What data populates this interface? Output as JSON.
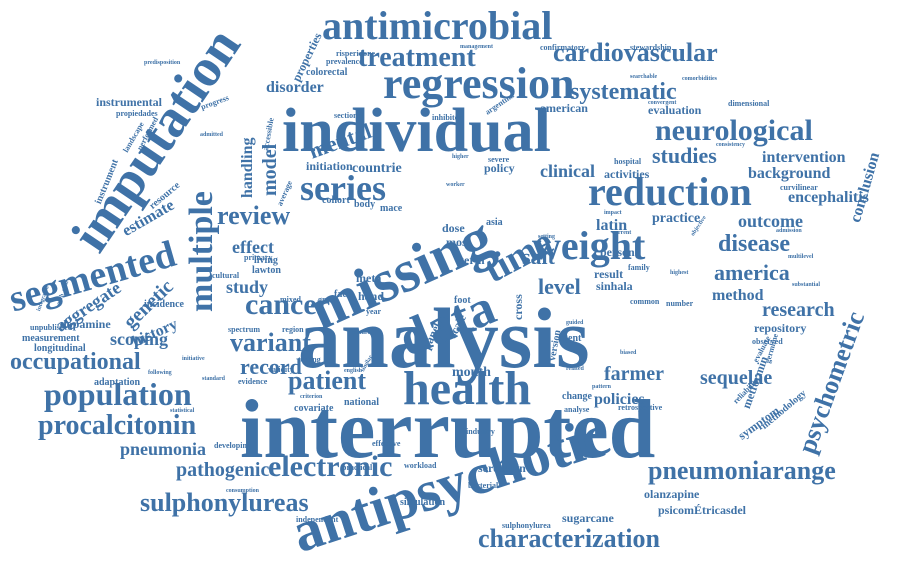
{
  "colors": {
    "primary": "#3f72a7",
    "background": "#ffffff"
  },
  "words": [
    {
      "text": "analysis",
      "size": 86
    },
    {
      "text": "interrupted",
      "size": 84
    },
    {
      "text": "individual",
      "size": 62
    },
    {
      "text": "missing",
      "size": 60
    },
    {
      "text": "antipsychotic",
      "size": 58
    },
    {
      "text": "imputation",
      "size": 54
    },
    {
      "text": "data",
      "size": 52
    },
    {
      "text": "health",
      "size": 48
    },
    {
      "text": "regression",
      "size": 44
    },
    {
      "text": "antimicrobial",
      "size": 40
    },
    {
      "text": "weight",
      "size": 40
    },
    {
      "text": "reduction",
      "size": 40
    },
    {
      "text": "segmented",
      "size": 38
    },
    {
      "text": "series",
      "size": 36
    },
    {
      "text": "time",
      "size": 38
    },
    {
      "text": "multiple",
      "size": 34
    },
    {
      "text": "population",
      "size": 32
    },
    {
      "text": "cancer",
      "size": 30
    },
    {
      "text": "electronic",
      "size": 30
    },
    {
      "text": "neurological",
      "size": 30
    },
    {
      "text": "procalcitonin",
      "size": 28
    },
    {
      "text": "treatment",
      "size": 28
    },
    {
      "text": "pneumoniarange",
      "size": 26
    },
    {
      "text": "sulphonylureas",
      "size": 26
    },
    {
      "text": "characterization",
      "size": 26
    },
    {
      "text": "review",
      "size": 26
    },
    {
      "text": "cardiovascular",
      "size": 26
    },
    {
      "text": "patient",
      "size": 26
    },
    {
      "text": "variant",
      "size": 26
    },
    {
      "text": "psychometric",
      "size": 26
    },
    {
      "text": "systematic",
      "size": 24
    },
    {
      "text": "disease",
      "size": 24
    },
    {
      "text": "studies",
      "size": 22
    },
    {
      "text": "occupational",
      "size": 24
    },
    {
      "text": "record",
      "size": 22
    },
    {
      "text": "level",
      "size": 22
    },
    {
      "text": "salt",
      "size": 22
    },
    {
      "text": "america",
      "size": 22
    },
    {
      "text": "farmer",
      "size": 20
    },
    {
      "text": "sequelae",
      "size": 20
    },
    {
      "text": "research",
      "size": 20
    },
    {
      "text": "mental",
      "size": 22
    },
    {
      "text": "model",
      "size": 20
    },
    {
      "text": "genetic",
      "size": 20
    },
    {
      "text": "pathogenic",
      "size": 20
    },
    {
      "text": "pneumonia",
      "size": 18
    },
    {
      "text": "outcome",
      "size": 18
    },
    {
      "text": "clinical",
      "size": 18
    },
    {
      "text": "effect",
      "size": 18
    },
    {
      "text": "aggregate",
      "size": 18
    },
    {
      "text": "scoping",
      "size": 18
    },
    {
      "text": "study",
      "size": 18
    },
    {
      "text": "method",
      "size": 16
    },
    {
      "text": "conclusion",
      "size": 16
    },
    {
      "text": "policies",
      "size": 16
    },
    {
      "text": "disorder",
      "size": 16
    },
    {
      "text": "intervention",
      "size": 16
    },
    {
      "text": "background",
      "size": 16
    },
    {
      "text": "encephalitis",
      "size": 16
    },
    {
      "text": "latin",
      "size": 16
    },
    {
      "text": "handling",
      "size": 16
    },
    {
      "text": "estimate",
      "size": 16
    },
    {
      "text": "history",
      "size": 16
    },
    {
      "text": "countrie",
      "size": 14
    },
    {
      "text": "initiation",
      "size": 12
    },
    {
      "text": "policy",
      "size": 12
    },
    {
      "text": "american",
      "size": 12
    },
    {
      "text": "evaluation",
      "size": 12
    },
    {
      "text": "instrumental",
      "size": 12
    },
    {
      "text": "practice",
      "size": 14
    },
    {
      "text": "person",
      "size": 12
    },
    {
      "text": "result",
      "size": 12
    },
    {
      "text": "metformin",
      "size": 12
    },
    {
      "text": "symptom",
      "size": 12
    },
    {
      "text": "methodology",
      "size": 10
    },
    {
      "text": "repository",
      "size": 12
    },
    {
      "text": "olanzapine",
      "size": 12
    },
    {
      "text": "psicomÉtricasdel",
      "size": 12
    },
    {
      "text": "sugarcane",
      "size": 12
    },
    {
      "text": "serotonin",
      "size": 12
    },
    {
      "text": "mouth",
      "size": 14
    },
    {
      "text": "panel",
      "size": 12
    },
    {
      "text": "cross",
      "size": 12
    },
    {
      "text": "scale",
      "size": 12
    },
    {
      "text": "dose",
      "size": 12
    },
    {
      "text": "most",
      "size": 12
    },
    {
      "text": "meta",
      "size": 12
    },
    {
      "text": "face",
      "size": 10
    },
    {
      "text": "hand",
      "size": 12
    },
    {
      "text": "living",
      "size": 10
    },
    {
      "text": "lawton",
      "size": 10
    },
    {
      "text": "dopamine",
      "size": 12
    },
    {
      "text": "measurement",
      "size": 10
    },
    {
      "text": "longitudinal",
      "size": 10
    },
    {
      "text": "adaptation",
      "size": 10
    },
    {
      "text": "incidence",
      "size": 10
    },
    {
      "text": "properties",
      "size": 12
    },
    {
      "text": "colorectal",
      "size": 10
    },
    {
      "text": "prevalence",
      "size": 8
    },
    {
      "text": "risperidone",
      "size": 8
    },
    {
      "text": "confirmatory",
      "size": 8
    },
    {
      "text": "stewardship",
      "size": 8
    },
    {
      "text": "management",
      "size": 6
    },
    {
      "text": "comorbidities",
      "size": 6
    },
    {
      "text": "searchable",
      "size": 6
    },
    {
      "text": "dimensional",
      "size": 8
    },
    {
      "text": "convergent",
      "size": 6
    },
    {
      "text": "hospital",
      "size": 8
    },
    {
      "text": "activities",
      "size": 12
    },
    {
      "text": "curvilinear",
      "size": 8
    },
    {
      "text": "consistency",
      "size": 6
    },
    {
      "text": "admission",
      "size": 6
    },
    {
      "text": "multilevel",
      "size": 6
    },
    {
      "text": "substantial",
      "size": 6
    },
    {
      "text": "germline",
      "size": 8
    },
    {
      "text": "evaluate",
      "size": 8
    },
    {
      "text": "reliability",
      "size": 8
    },
    {
      "text": "observed",
      "size": 8
    },
    {
      "text": "retrospective",
      "size": 8
    },
    {
      "text": "change",
      "size": 10
    },
    {
      "text": "analyse",
      "size": 8
    },
    {
      "text": "industry",
      "size": 8
    },
    {
      "text": "workload",
      "size": 8
    },
    {
      "text": "bacterial",
      "size": 8
    },
    {
      "text": "simulation",
      "size": 10
    },
    {
      "text": "sulphonylurea",
      "size": 8
    },
    {
      "text": "independent",
      "size": 8
    },
    {
      "text": "consumption",
      "size": 6
    },
    {
      "text": "developing",
      "size": 8
    },
    {
      "text": "practical",
      "size": 8
    },
    {
      "text": "effective",
      "size": 8
    },
    {
      "text": "covariate",
      "size": 10
    },
    {
      "text": "national",
      "size": 10
    },
    {
      "text": "statistical",
      "size": 6
    },
    {
      "text": "following",
      "size": 6
    },
    {
      "text": "standard",
      "size": 6
    },
    {
      "text": "evidence",
      "size": 8
    },
    {
      "text": "validity",
      "size": 8
    },
    {
      "text": "testing",
      "size": 8
    },
    {
      "text": "initiative",
      "size": 6
    },
    {
      "text": "spectrum",
      "size": 8
    },
    {
      "text": "region",
      "size": 8
    },
    {
      "text": "mixed",
      "size": 8
    },
    {
      "text": "primary",
      "size": 8
    },
    {
      "text": "cultural",
      "size": 8
    },
    {
      "text": "sinhala",
      "size": 12
    },
    {
      "text": "version",
      "size": 10
    },
    {
      "text": "agent",
      "size": 10
    },
    {
      "text": "foot",
      "size": 10
    },
    {
      "text": "term",
      "size": 12
    },
    {
      "text": "asia",
      "size": 10
    },
    {
      "text": "cohort",
      "size": 10
    },
    {
      "text": "body",
      "size": 10
    },
    {
      "text": "mace",
      "size": 10
    },
    {
      "text": "year",
      "size": 8
    },
    {
      "text": "group",
      "size": 8
    },
    {
      "text": "english",
      "size": 6
    },
    {
      "text": "criterion",
      "size": 6
    },
    {
      "text": "sectional",
      "size": 8
    },
    {
      "text": "inhibitor",
      "size": 8
    },
    {
      "text": "argentina",
      "size": 8
    },
    {
      "text": "severe",
      "size": 8
    },
    {
      "text": "higher",
      "size": 6
    },
    {
      "text": "worker",
      "size": 6
    },
    {
      "text": "progress",
      "size": 8
    },
    {
      "text": "admitted",
      "size": 6
    },
    {
      "text": "propiedades",
      "size": 8
    },
    {
      "text": "performed",
      "size": 8
    },
    {
      "text": "landscape",
      "size": 8
    },
    {
      "text": "instrument",
      "size": 10
    },
    {
      "text": "resource",
      "size": 10
    },
    {
      "text": "predisposition",
      "size": 6
    },
    {
      "text": "unpublished",
      "size": 8
    },
    {
      "text": "integrated",
      "size": 6
    },
    {
      "text": "path_msh",
      "size": 6
    },
    {
      "text": "average",
      "size": 8
    },
    {
      "text": "accessible",
      "size": 8
    },
    {
      "text": "picture",
      "size": 6
    },
    {
      "text": "similar",
      "size": 6
    },
    {
      "text": "guided",
      "size": 6
    },
    {
      "text": "biased",
      "size": 6
    },
    {
      "text": "related",
      "size": 6
    },
    {
      "text": "common",
      "size": 8
    },
    {
      "text": "number",
      "size": 8
    },
    {
      "text": "highest",
      "size": 6
    },
    {
      "text": "family",
      "size": 8
    },
    {
      "text": "current",
      "size": 6
    },
    {
      "text": "impact",
      "size": 6
    },
    {
      "text": "setting",
      "size": 6
    },
    {
      "text": "objective",
      "size": 6
    },
    {
      "text": "pattern",
      "size": 6
    }
  ]
}
